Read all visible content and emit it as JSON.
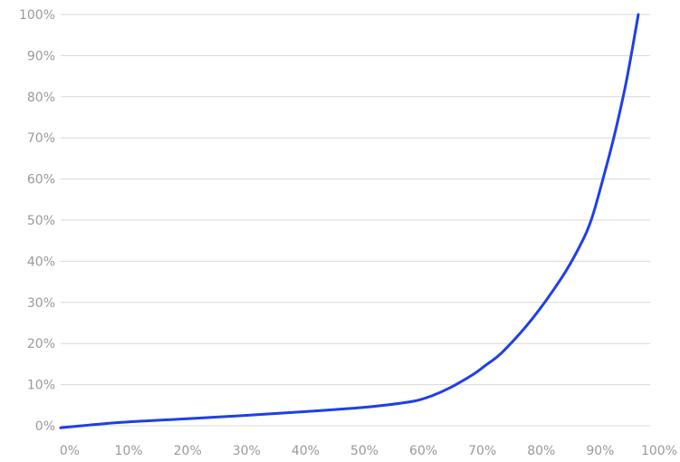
{
  "chart_data": {
    "type": "line",
    "title": "",
    "xlabel": "",
    "ylabel": "",
    "xlim": [
      0,
      100
    ],
    "ylim": [
      0,
      100
    ],
    "x_ticks": [
      0,
      10,
      20,
      30,
      40,
      50,
      60,
      70,
      80,
      90,
      100
    ],
    "x_tick_labels": [
      "0%",
      "10%",
      "20%",
      "30%",
      "40%",
      "50%",
      "60%",
      "70%",
      "80%",
      "90%",
      "100%"
    ],
    "y_ticks": [
      0,
      10,
      20,
      30,
      40,
      50,
      60,
      70,
      80,
      90,
      100
    ],
    "y_tick_labels": [
      "0%",
      "10%",
      "20%",
      "30%",
      "40%",
      "50%",
      "60%",
      "70%",
      "80%",
      "90%",
      "100%"
    ],
    "grid": "horizontal",
    "legend": "none",
    "series": [
      {
        "color": "#1f3fe8",
        "points": [
          [
            0,
            -0.5
          ],
          [
            10,
            0.8
          ],
          [
            20,
            1.6
          ],
          [
            30,
            2.4
          ],
          [
            40,
            3.3
          ],
          [
            50,
            4.3
          ],
          [
            55,
            5.0
          ],
          [
            60,
            6.0
          ],
          [
            63,
            7.3
          ],
          [
            66,
            9.2
          ],
          [
            70,
            12.5
          ],
          [
            72,
            14.6
          ],
          [
            75,
            18.0
          ],
          [
            80,
            26.0
          ],
          [
            85,
            36.0
          ],
          [
            88,
            43.5
          ],
          [
            90,
            50.0
          ],
          [
            92,
            60.0
          ],
          [
            94,
            71.0
          ],
          [
            96,
            84.0
          ],
          [
            98,
            100.0
          ]
        ]
      }
    ]
  }
}
